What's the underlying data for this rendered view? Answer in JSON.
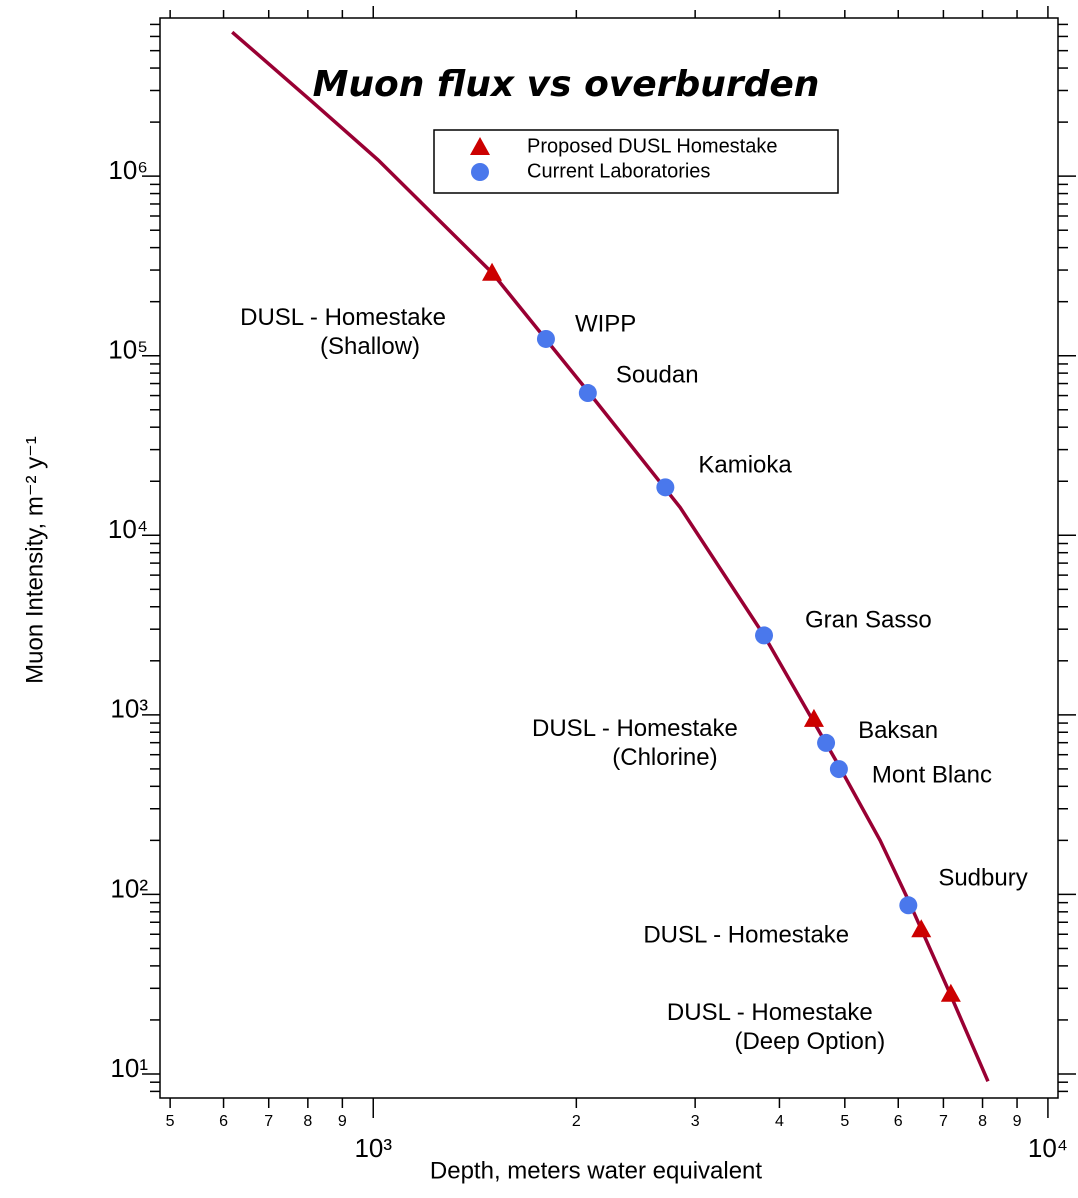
{
  "chart_data": {
    "type": "line",
    "title": "Muon flux vs overburden",
    "xlabel": "Depth, meters water equivalent",
    "ylabel": "Muon Intensity, m⁻² y⁻¹",
    "xscale": "log",
    "yscale": "log",
    "xlim": [
      483,
      10350
    ],
    "ylim": [
      7.35,
      7600000
    ],
    "xticks": [
      {
        "value": 1000,
        "label": "10³"
      },
      {
        "value": 10000,
        "label": "10⁴"
      }
    ],
    "xminorticks": [
      {
        "value": 500,
        "label": "5"
      },
      {
        "value": 600,
        "label": "6"
      },
      {
        "value": 700,
        "label": "7"
      },
      {
        "value": 800,
        "label": "8"
      },
      {
        "value": 900,
        "label": "9"
      },
      {
        "value": 2000,
        "label": "2"
      },
      {
        "value": 3000,
        "label": "3"
      },
      {
        "value": 4000,
        "label": "4"
      },
      {
        "value": 5000,
        "label": "5"
      },
      {
        "value": 6000,
        "label": "6"
      },
      {
        "value": 7000,
        "label": "7"
      },
      {
        "value": 8000,
        "label": "8"
      },
      {
        "value": 9000,
        "label": "9"
      }
    ],
    "yticks": [
      {
        "value": 10,
        "label": "10¹"
      },
      {
        "value": 100,
        "label": "10²"
      },
      {
        "value": 1000,
        "label": "10³"
      },
      {
        "value": 10000,
        "label": "10⁴"
      },
      {
        "value": 100000,
        "label": "10⁵"
      },
      {
        "value": 1000000,
        "label": "10⁶"
      }
    ],
    "yminorticks": [
      8,
      9,
      20,
      30,
      40,
      50,
      60,
      70,
      80,
      90,
      200,
      300,
      400,
      500,
      600,
      700,
      800,
      900,
      2000,
      3000,
      4000,
      5000,
      6000,
      7000,
      8000,
      9000,
      20000,
      30000,
      40000,
      50000,
      60000,
      70000,
      80000,
      90000,
      200000,
      300000,
      400000,
      500000,
      600000,
      700000,
      800000,
      900000,
      2000000,
      3000000,
      4000000,
      5000000,
      6000000,
      7000000
    ],
    "series": [
      {
        "type": "line",
        "color": "#990033",
        "x": [
          618,
          807,
          1017,
          1500,
          2083,
          2850,
          3795,
          4920,
          5640,
          6210,
          7160,
          8150
        ],
        "values": [
          6340000,
          2650000,
          1230000,
          290000,
          63000,
          14300,
          2770,
          507,
          200,
          93,
          28,
          9.1
        ]
      },
      {
        "type": "scatter",
        "name": "Proposed DUSL Homestake",
        "marker": "triangle",
        "color": "#cc0000",
        "x": [
          1500,
          4500,
          6490,
          7180
        ],
        "values": [
          290000,
          950,
          64,
          28
        ],
        "point_labels": [
          [
            "DUSL - Homestake",
            "(Shallow)"
          ],
          [
            "DUSL - Homestake",
            "(Chlorine)"
          ],
          [
            "DUSL - Homestake"
          ],
          [
            "DUSL - Homestake",
            "(Deep Option)"
          ]
        ]
      },
      {
        "type": "scatter",
        "name": "Current Laboratories",
        "marker": "circle",
        "color": "#4a78ec",
        "x": [
          1803,
          2080,
          2710,
          3795,
          4690,
          4900,
          6210
        ],
        "values": [
          124000,
          62000,
          18500,
          2770,
          698,
          499,
          87
        ],
        "point_labels": [
          [
            "WIPP"
          ],
          [
            "Soudan"
          ],
          [
            "Kamioka"
          ],
          [
            "Gran Sasso"
          ],
          [
            "Baksan"
          ],
          [
            "Mont Blanc"
          ],
          [
            "Sudbury"
          ]
        ]
      }
    ]
  }
}
